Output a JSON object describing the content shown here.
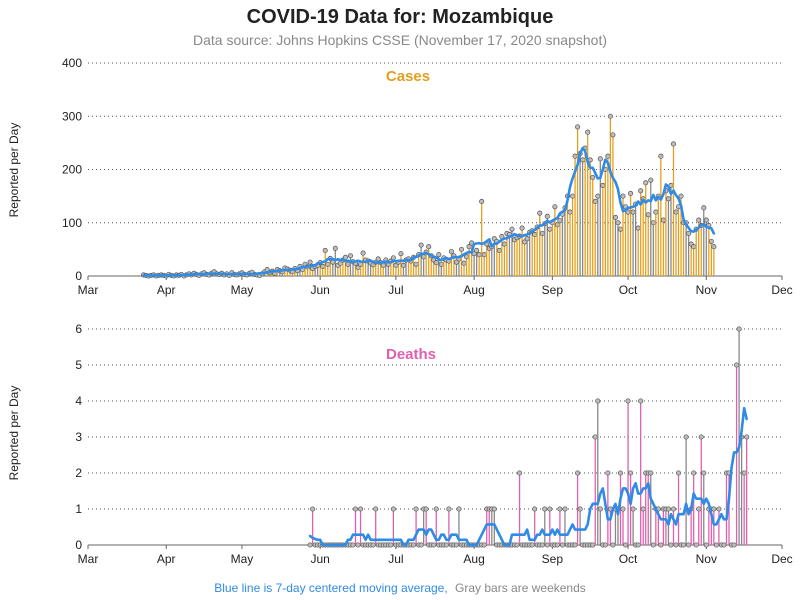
{
  "title": "COVID-19 Data for: Mozambique",
  "subtitle": "Data source: Johns Hopkins CSSE (November 17, 2020 snapshot)",
  "footnote": {
    "blue_text": "Blue line is 7-day centered moving average,",
    "gray_text": "Gray bars are weekends"
  },
  "colors": {
    "cases": "#e3a020",
    "deaths": "#e060b0",
    "weekend": "#888888",
    "moving_average": "#2f8be6",
    "marker_fill": "#bdbdbd"
  },
  "chart_data": [
    {
      "type": "bar",
      "title": "Cases",
      "ylabel": "Reported per Day",
      "xlim": [
        "2020-03-01",
        "2020-12-01"
      ],
      "ylim": [
        0,
        400
      ],
      "yticks": [
        0,
        100,
        200,
        300,
        400
      ],
      "xticks": [
        {
          "label": "Mar",
          "date": "2020-03-01"
        },
        {
          "label": "Apr",
          "date": "2020-04-01"
        },
        {
          "label": "May",
          "date": "2020-05-01"
        },
        {
          "label": "Jun",
          "date": "2020-06-01"
        },
        {
          "label": "Jul",
          "date": "2020-07-01"
        },
        {
          "label": "Aug",
          "date": "2020-08-01"
        },
        {
          "label": "Sep",
          "date": "2020-09-01"
        },
        {
          "label": "Oct",
          "date": "2020-10-01"
        },
        {
          "label": "Nov",
          "date": "2020-11-01"
        },
        {
          "label": "Dec",
          "date": "2020-12-01"
        }
      ],
      "grid": "horizontal dotted",
      "start_date": "2020-03-23",
      "values": [
        2,
        1,
        0,
        1,
        2,
        0,
        1,
        2,
        1,
        0,
        3,
        1,
        0,
        2,
        1,
        3,
        0,
        2,
        4,
        2,
        5,
        3,
        1,
        4,
        6,
        3,
        2,
        5,
        8,
        4,
        3,
        5,
        2,
        4,
        1,
        6,
        3,
        2,
        4,
        6,
        3,
        2,
        5,
        7,
        3,
        2,
        1,
        4,
        8,
        12,
        6,
        9,
        5,
        12,
        10,
        8,
        15,
        13,
        11,
        8,
        14,
        10,
        18,
        12,
        22,
        17,
        26,
        14,
        18,
        20,
        25,
        18,
        48,
        22,
        33,
        26,
        52,
        20,
        24,
        30,
        35,
        22,
        38,
        27,
        24,
        16,
        22,
        43,
        30,
        28,
        24,
        21,
        26,
        32,
        25,
        20,
        30,
        22,
        28,
        34,
        20,
        26,
        42,
        20,
        30,
        32,
        28,
        35,
        22,
        40,
        58,
        36,
        45,
        55,
        38,
        30,
        25,
        40,
        22,
        34,
        30,
        28,
        46,
        38,
        26,
        32,
        50,
        24,
        36,
        55,
        62,
        42,
        48,
        40,
        140,
        40,
        60,
        52,
        55,
        70,
        65,
        48,
        74,
        60,
        80,
        78,
        88,
        68,
        72,
        75,
        90,
        64,
        70,
        82,
        85,
        78,
        92,
        118,
        80,
        98,
        112,
        88,
        100,
        130,
        96,
        104,
        116,
        128,
        150,
        120,
        150,
        225,
        280,
        230,
        218,
        240,
        270,
        218,
        185,
        140,
        150,
        220,
        170,
        200,
        225,
        300,
        265,
        110,
        100,
        88,
        150,
        130,
        120,
        155,
        120,
        135,
        90,
        160,
        145,
        175,
        115,
        180,
        100,
        120,
        150,
        225,
        105,
        160,
        145,
        170,
        248,
        120,
        130,
        150,
        100,
        100,
        80,
        60,
        55,
        88,
        105,
        95,
        128,
        105,
        95,
        65,
        55
      ]
    },
    {
      "type": "bar",
      "title": "Deaths",
      "ylabel": "Reported per Day",
      "xlim": [
        "2020-03-01",
        "2020-12-01"
      ],
      "ylim": [
        0,
        6
      ],
      "yticks": [
        0,
        1,
        2,
        3,
        4,
        5,
        6
      ],
      "xticks": [
        {
          "label": "Mar",
          "date": "2020-03-01"
        },
        {
          "label": "Apr",
          "date": "2020-04-01"
        },
        {
          "label": "May",
          "date": "2020-05-01"
        },
        {
          "label": "Jun",
          "date": "2020-06-01"
        },
        {
          "label": "Jul",
          "date": "2020-07-01"
        },
        {
          "label": "Aug",
          "date": "2020-08-01"
        },
        {
          "label": "Sep",
          "date": "2020-09-01"
        },
        {
          "label": "Oct",
          "date": "2020-10-01"
        },
        {
          "label": "Nov",
          "date": "2020-11-01"
        },
        {
          "label": "Dec",
          "date": "2020-12-01"
        }
      ],
      "grid": "horizontal dotted",
      "start_date": "2020-05-28",
      "values": [
        0,
        1,
        0,
        0,
        0,
        0,
        0,
        0,
        0,
        0,
        0,
        0,
        0,
        0,
        0,
        0,
        0,
        0,
        1,
        0,
        1,
        0,
        0,
        0,
        0,
        0,
        1,
        0,
        0,
        0,
        0,
        0,
        0,
        1,
        0,
        0,
        0,
        0,
        0,
        0,
        0,
        0,
        1,
        0,
        0,
        1,
        1,
        0,
        0,
        0,
        1,
        0,
        0,
        0,
        0,
        1,
        0,
        0,
        0,
        1,
        0,
        0,
        0,
        0,
        0,
        0,
        0,
        0,
        0,
        0,
        1,
        1,
        1,
        1,
        0,
        0,
        0,
        0,
        0,
        0,
        0,
        0,
        0,
        2,
        0,
        0,
        0,
        0,
        0,
        1,
        0,
        0,
        0,
        1,
        0,
        1,
        0,
        0,
        0,
        1,
        0,
        1,
        0,
        0,
        0,
        0,
        2,
        1,
        0,
        0,
        0,
        0,
        0,
        3,
        4,
        1,
        0,
        0,
        2,
        1,
        0,
        1,
        1,
        2,
        1,
        0,
        4,
        2,
        1,
        0,
        0,
        4,
        1,
        2,
        2,
        2,
        0,
        1,
        1,
        0,
        1,
        1,
        1,
        0,
        1,
        0,
        2,
        0,
        0,
        3,
        0,
        1,
        2,
        0,
        1,
        3,
        2,
        0,
        1,
        1,
        1,
        0,
        1,
        0,
        0,
        2,
        2,
        0,
        0,
        5,
        6,
        3,
        2,
        3
      ]
    }
  ]
}
